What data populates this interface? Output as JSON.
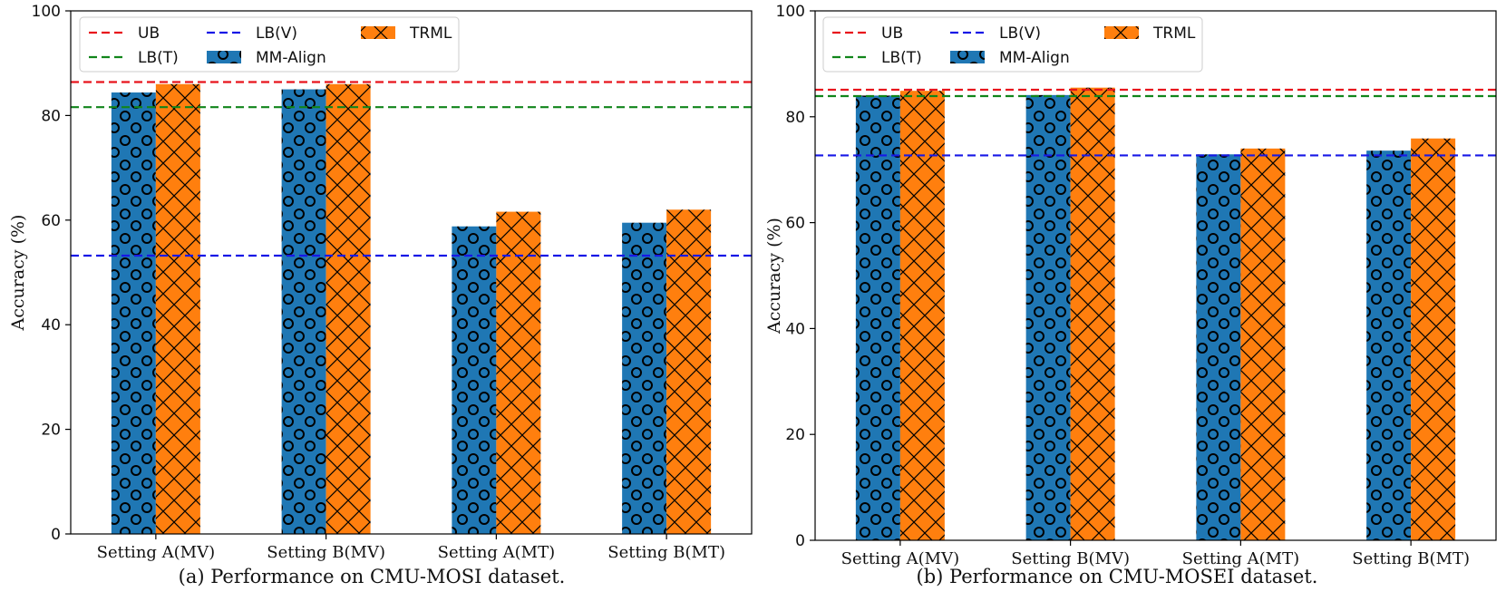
{
  "chart_data": [
    {
      "type": "bar",
      "caption": "(a) Performance on CMU-MOSI dataset.",
      "title": "",
      "xlabel": "",
      "ylabel": "Accuracy (%)",
      "ylim": [
        0,
        100
      ],
      "yticks": [
        "0",
        "20",
        "40",
        "60",
        "80",
        "100"
      ],
      "grid": false,
      "legend_position": "top-left",
      "categories": [
        "Setting A(MV)",
        "Setting  B(MV)",
        "Setting A(MT)",
        "Setting B(MT)"
      ],
      "series": [
        {
          "name": "MM-Align",
          "color": "#1f77b4",
          "pattern": "circles",
          "values": [
            84.4,
            85.0,
            58.8,
            59.5
          ]
        },
        {
          "name": "TRML",
          "color": "#ff7f0e",
          "pattern": "crosshatch",
          "values": [
            86.0,
            86.0,
            61.6,
            62.0
          ]
        }
      ],
      "reference_lines": [
        {
          "name": "UB",
          "color": "#e8141c",
          "value": 86.4
        },
        {
          "name": "LB(T)",
          "color": "#11851b",
          "value": 81.6
        },
        {
          "name": "LB(V)",
          "color": "#1818e6",
          "value": 53.2
        }
      ]
    },
    {
      "type": "bar",
      "caption": "(b) Performance on CMU-MOSEI dataset.",
      "title": "",
      "xlabel": "",
      "ylabel": "Accuracy (%)",
      "ylim": [
        0,
        100
      ],
      "yticks": [
        "0",
        "20",
        "40",
        "60",
        "80",
        "100"
      ],
      "grid": false,
      "legend_position": "top-left",
      "categories": [
        "Setting A(MV)",
        "Setting  B(MV)",
        "Setting A(MT)",
        "Setting B(MT)"
      ],
      "series": [
        {
          "name": "MM-Align",
          "color": "#1f77b4",
          "pattern": "circles",
          "values": [
            84.0,
            84.1,
            72.9,
            73.6
          ]
        },
        {
          "name": "TRML",
          "color": "#ff7f0e",
          "pattern": "crosshatch",
          "values": [
            84.9,
            85.5,
            74.0,
            75.9
          ]
        }
      ],
      "reference_lines": [
        {
          "name": "UB",
          "color": "#e8141c",
          "value": 85.1
        },
        {
          "name": "LB(T)",
          "color": "#11851b",
          "value": 83.9
        },
        {
          "name": "LB(V)",
          "color": "#1818e6",
          "value": 72.7
        }
      ]
    }
  ]
}
